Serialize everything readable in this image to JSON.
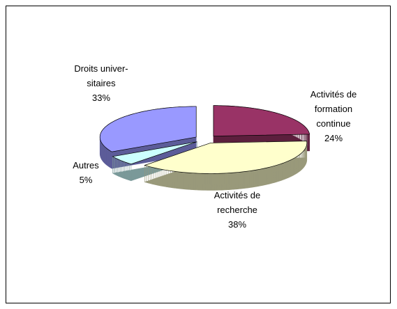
{
  "chart_data": {
    "type": "pie",
    "categories": [
      "Activités de\nformation\ncontinue",
      "Activités de\nrecherche",
      "Autres",
      "Droits univer-\nsitaires"
    ],
    "values": [
      24,
      38,
      5,
      33
    ],
    "value_labels": [
      "24%",
      "38%",
      "5%",
      "33%"
    ],
    "colors": [
      "#993366",
      "#ffffcc",
      "#ccffff",
      "#9999ff"
    ]
  }
}
